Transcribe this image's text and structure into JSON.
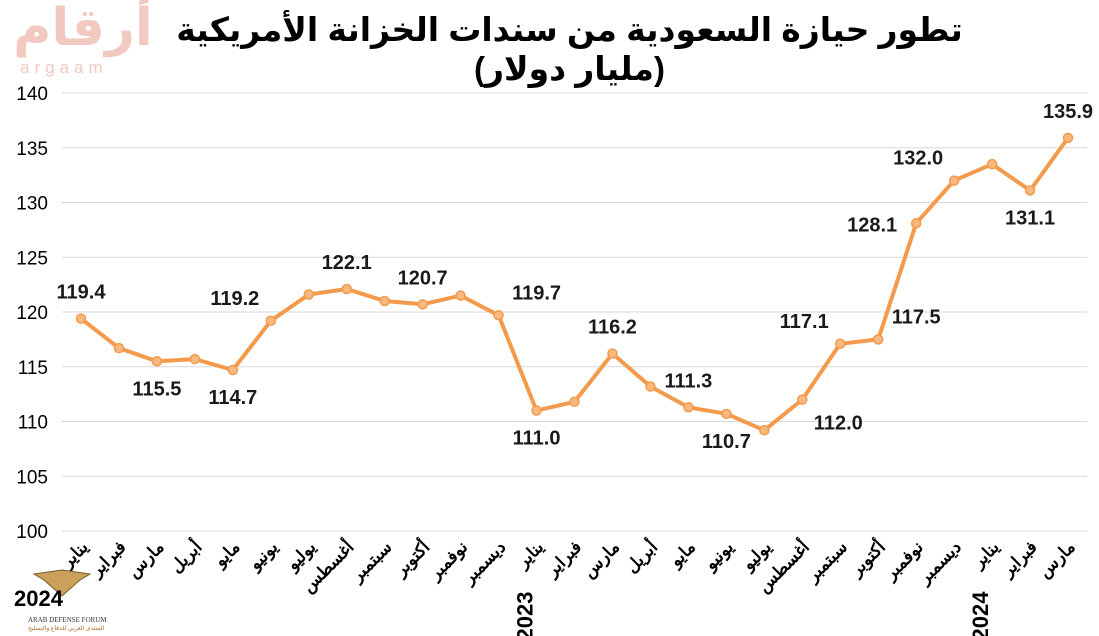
{
  "logo": {
    "arabic": "أرقام",
    "latin": "argaam"
  },
  "watermark": {
    "year": "2024",
    "name": "ARAB DEFENSE FORUM",
    "arabic": "المنتدى العربي للدفاع والتسليح"
  },
  "colors": {
    "line": "#f39a4c",
    "marker": "#f7b97f",
    "grid": "#d9d9d9"
  },
  "chart_data": {
    "type": "line",
    "title": "تطور حيازة السعودية من سندات الخزانة الأمريكية (مليار دولار)",
    "xlabel": "",
    "ylabel": "",
    "ylim": [
      100,
      140
    ],
    "yticks": [
      100,
      105,
      110,
      115,
      120,
      125,
      130,
      135,
      140
    ],
    "grid": true,
    "categories": [
      "يناير",
      "فبراير",
      "مارس",
      "أبريل",
      "مايو",
      "يونيو",
      "يوليو",
      "أغسطس",
      "سبتمبر",
      "أكتوبر",
      "نوفمبر",
      "ديسمبر",
      "يناير",
      "فبراير",
      "مارس",
      "أبريل",
      "مايو",
      "يونيو",
      "يوليو",
      "أغسطس",
      "سبتمبر",
      "أكتوبر",
      "نوفمبر",
      "ديسمبر",
      "يناير",
      "فبراير",
      "مارس"
    ],
    "year_labels": [
      {
        "index": 12,
        "label": "2023"
      },
      {
        "index": 24,
        "label": "2024"
      }
    ],
    "series": [
      {
        "values": [
          119.4,
          116.7,
          115.5,
          115.7,
          114.7,
          119.2,
          121.6,
          122.1,
          121.0,
          120.7,
          121.5,
          119.7,
          111.0,
          111.8,
          116.2,
          113.2,
          111.3,
          110.7,
          109.2,
          112.0,
          117.1,
          117.5,
          128.1,
          132.0,
          133.5,
          131.1,
          135.9
        ]
      }
    ],
    "data_labels": [
      {
        "index": 0,
        "text": "119.4",
        "pos": "above"
      },
      {
        "index": 2,
        "text": "115.5",
        "pos": "below"
      },
      {
        "index": 4,
        "text": "114.7",
        "pos": "below"
      },
      {
        "index": 5,
        "text": "119.2",
        "pos": "above-left"
      },
      {
        "index": 7,
        "text": "122.1",
        "pos": "above"
      },
      {
        "index": 9,
        "text": "120.7",
        "pos": "above"
      },
      {
        "index": 11,
        "text": "119.7",
        "pos": "above-right"
      },
      {
        "index": 12,
        "text": "111.0",
        "pos": "below"
      },
      {
        "index": 14,
        "text": "116.2",
        "pos": "above"
      },
      {
        "index": 16,
        "text": "111.3",
        "pos": "above"
      },
      {
        "index": 17,
        "text": "110.7",
        "pos": "below"
      },
      {
        "index": 19,
        "text": "112.0",
        "pos": "below-right"
      },
      {
        "index": 20,
        "text": "117.1",
        "pos": "above-left"
      },
      {
        "index": 21,
        "text": "117.5",
        "pos": "above-right"
      },
      {
        "index": 22,
        "text": "128.1",
        "pos": "left"
      },
      {
        "index": 23,
        "text": "132.0",
        "pos": "above-left"
      },
      {
        "index": 25,
        "text": "131.1",
        "pos": "below"
      },
      {
        "index": 26,
        "text": "135.9",
        "pos": "above"
      }
    ]
  }
}
